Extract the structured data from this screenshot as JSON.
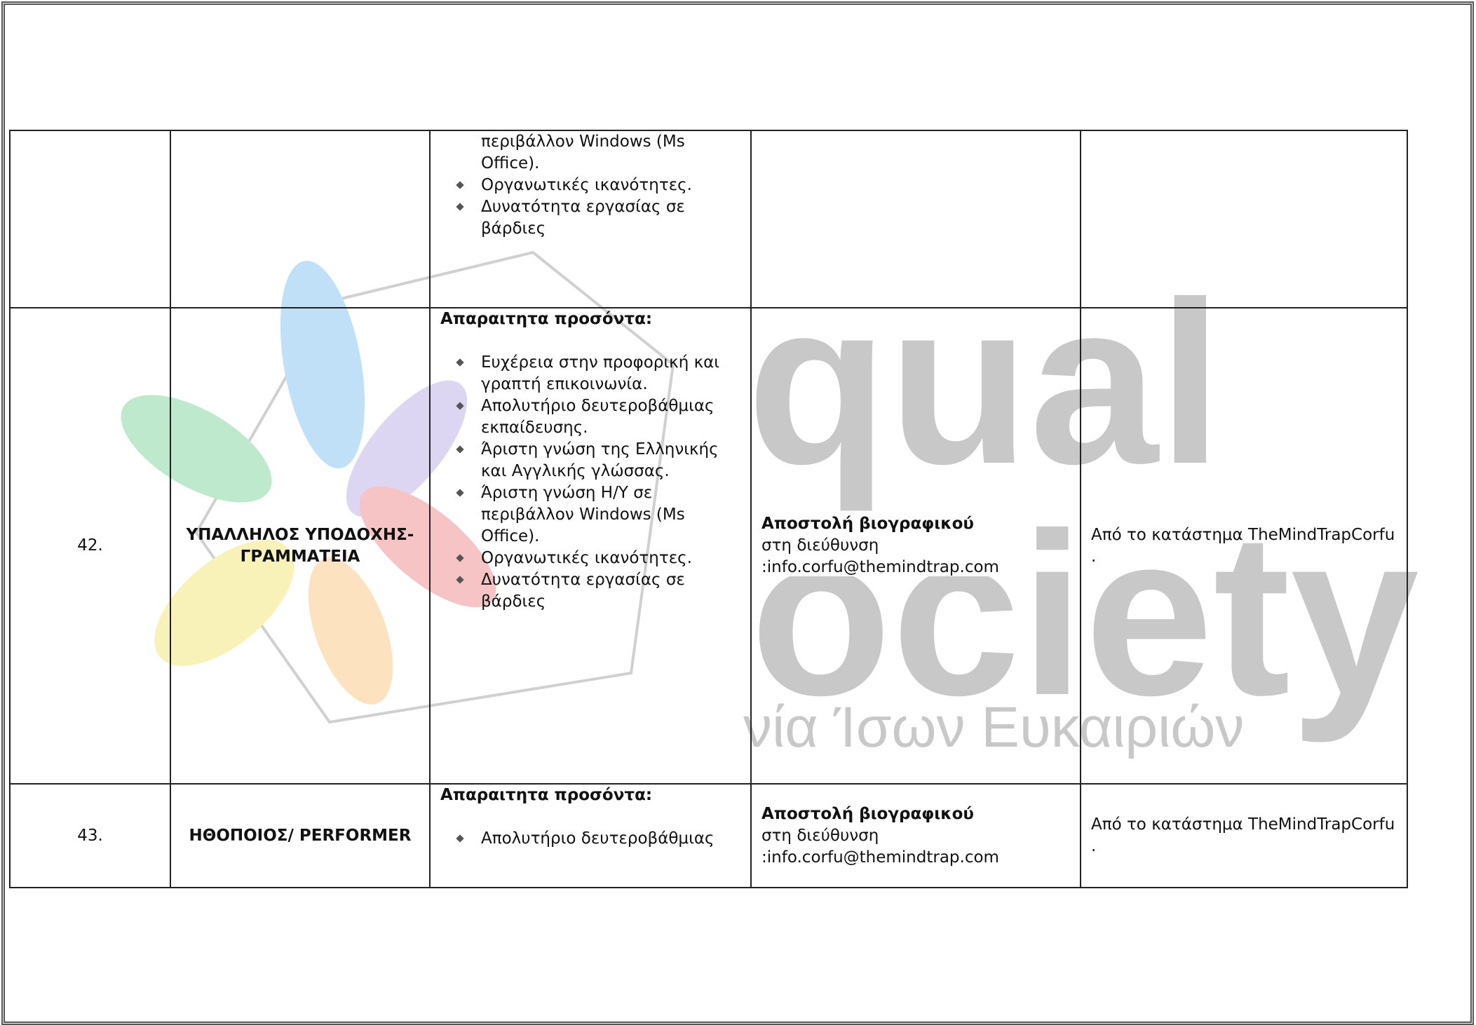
{
  "watermark": {
    "big_top": "qual",
    "big_bottom": "ociety",
    "small": "νία Ίσων Ευκαιριών"
  },
  "table": {
    "rows": [
      {
        "qualifications": {
          "continuation": "περιβάλλον Windows (Ms Office).",
          "items": [
            "Οργανωτικές ικανότητες.",
            "Δυνατότητα εργασίας σε βάρδιες"
          ]
        }
      },
      {
        "number": "42.",
        "title": "ΥΠΑΛΛΗΛΟΣ ΥΠΟΔΟΧΗΣ-ΓΡΑΜΜΑΤΕΙΑ",
        "qualifications": {
          "heading": "Απαραιτητα προσόντα:",
          "items": [
            "Ευχέρεια στην προφορική και γραπτή επικοινωνία.",
            "Απολυτήριο δευτεροβάθμιας εκπαίδευσης.",
            "Άριστη γνώση της Ελληνικής και Αγγλικής γλώσσας.",
            "Άριστη γνώση Η/Υ σε περιβάλλον Windows (Ms Office).",
            "Οργανωτικές ικανότητες.",
            "Δυνατότητα εργασίας σε βάρδιες"
          ]
        },
        "application": {
          "bold": "Αποστολή βιογραφικού",
          "text": "στη διεύθυνση",
          "email": ":info.corfu@themindtrap.com"
        },
        "location": "Από το κατάστημα TheMindTrapCorfu ."
      },
      {
        "number": "43.",
        "title": "ΗΘΟΠΟΙΟΣ/ PERFORMER",
        "qualifications": {
          "heading": "Απαραιτητα προσόντα:",
          "items": [
            "Απολυτήριο δευτεροβάθμιας"
          ]
        },
        "application": {
          "bold": "Αποστολή βιογραφικού",
          "text": "στη διεύθυνση",
          "email": ":info.corfu@themindtrap.com"
        },
        "location": "Από το κατάστημα TheMindTrapCorfu ."
      }
    ]
  }
}
